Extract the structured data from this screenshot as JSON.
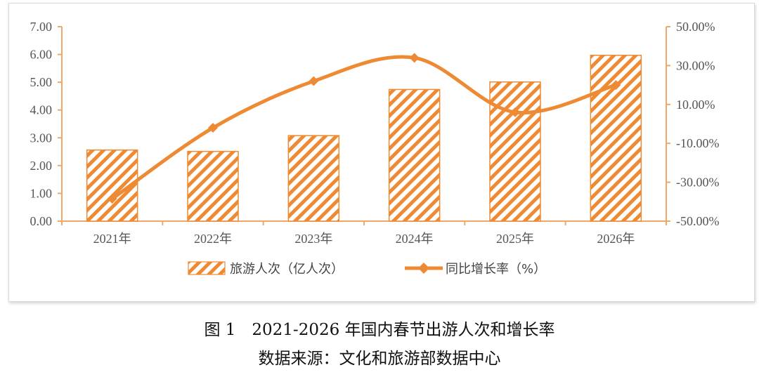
{
  "chart_data": {
    "type": "bar",
    "categories": [
      "2021年",
      "2022年",
      "2023年",
      "2024年",
      "2025年",
      "2026年"
    ],
    "series": [
      {
        "name": "旅游人次（亿人次）",
        "type": "bar",
        "axis": "left",
        "values": [
          2.56,
          2.51,
          3.08,
          4.74,
          5.01,
          5.97
        ]
      },
      {
        "name": "同比增长率（%）",
        "type": "line",
        "axis": "right",
        "values": [
          -38.5,
          -2.0,
          22.0,
          34.0,
          6.0,
          20.0
        ]
      }
    ],
    "y_left": {
      "ylim": [
        0,
        7
      ],
      "ticks": [
        "0.00",
        "1.00",
        "2.00",
        "3.00",
        "4.00",
        "5.00",
        "6.00",
        "7.00"
      ]
    },
    "y_right": {
      "ylim": [
        -50,
        50
      ],
      "ticks": [
        "-50.00%",
        "-30.00%",
        "-10.00%",
        "10.00%",
        "30.00%",
        "50.00%"
      ]
    },
    "legend_position": "bottom",
    "grid": false,
    "colors": {
      "accent": "#ee8a33",
      "axis": "#f0a868"
    }
  },
  "caption": {
    "title": "图 1　2021-2026 年国内春节出游人次和增长率",
    "source": "数据来源：文化和旅游部数据中心"
  }
}
